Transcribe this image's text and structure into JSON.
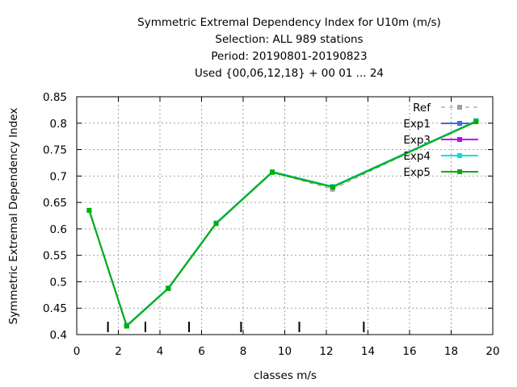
{
  "chart_data": {
    "type": "line",
    "title": [
      "Symmetric Extremal Dependency Index  for U10m (m/s)",
      "Selection: ALL     989 stations",
      "Period: 20190801-20190823",
      "Used {00,06,12,18} + 00 01 ... 24"
    ],
    "xlabel": "classes m/s",
    "ylabel": "Symmetric Extremal Dependency Index",
    "xlim": [
      0,
      20
    ],
    "ylim": [
      0.4,
      0.85
    ],
    "xticks": [
      0,
      2,
      4,
      6,
      8,
      10,
      12,
      14,
      16,
      18,
      20
    ],
    "yticks": [
      0.4,
      0.45,
      0.5,
      0.55,
      0.6,
      0.65,
      0.7,
      0.75,
      0.8,
      0.85
    ],
    "xtick_labels": [
      "0",
      "2",
      "4",
      "6",
      "8",
      "10",
      "12",
      "14",
      "16",
      "18",
      "20"
    ],
    "ytick_labels": [
      "0.4",
      "0.45",
      "0.5",
      "0.55",
      "0.6",
      "0.65",
      "0.7",
      "0.75",
      "0.8",
      "0.85"
    ],
    "grid": true,
    "legend_position": "top-right",
    "x": [
      0.6,
      2.4,
      4.4,
      6.7,
      9.4,
      12.3,
      19.2
    ],
    "class_boundaries": [
      1.5,
      3.3,
      5.4,
      7.9,
      10.7,
      13.8
    ],
    "series": [
      {
        "name": "Ref",
        "color": "#a0a0a0",
        "dashed": true,
        "values": [
          0.635,
          0.418,
          0.488,
          0.61,
          0.707,
          0.675,
          0.805
        ]
      },
      {
        "name": "Exp1",
        "color": "#4169e1",
        "dashed": false,
        "values": [
          0.635,
          0.417,
          0.488,
          0.611,
          0.708,
          0.68,
          0.804
        ]
      },
      {
        "name": "Exp3",
        "color": "#c000ff",
        "dashed": false,
        "values": [
          0.635,
          0.417,
          0.488,
          0.611,
          0.708,
          0.68,
          0.804
        ]
      },
      {
        "name": "Exp4",
        "color": "#00e0e0",
        "dashed": false,
        "values": [
          0.635,
          0.417,
          0.488,
          0.611,
          0.708,
          0.68,
          0.804
        ]
      },
      {
        "name": "Exp5",
        "color": "#00b000",
        "dashed": false,
        "values": [
          0.635,
          0.416,
          0.487,
          0.61,
          0.707,
          0.679,
          0.803
        ]
      }
    ]
  }
}
